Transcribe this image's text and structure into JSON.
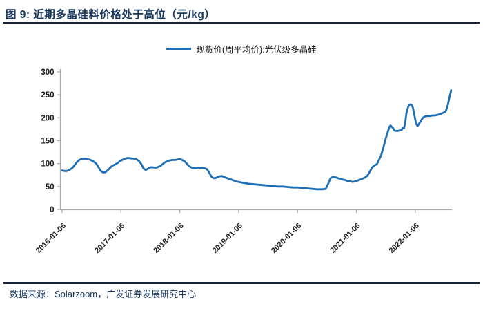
{
  "figure": {
    "title": "图 9:  近期多晶硅料价格处于高位（元/kg）",
    "source_label": "数据来源：Solarzoom，广发证券发展研究中心"
  },
  "legend": {
    "series_label": "现货价(周平均价):光伏级多晶硅"
  },
  "colors": {
    "line": "#1E6FB5",
    "title_text": "#17365D",
    "rule": "#1a2438",
    "axis": "#A9A9A9",
    "tick_text": "#1a1a1a"
  },
  "chart_data": {
    "type": "line",
    "title": "近期多晶硅料价格处于高位（元/kg）",
    "ylabel": "",
    "xlabel": "",
    "unit": "元/kg",
    "ylim": [
      0,
      300
    ],
    "y_ticks": [
      0,
      50,
      100,
      150,
      200,
      250,
      300
    ],
    "x_tick_labels": [
      "2016-01-06",
      "2017-01-06",
      "2018-01-06",
      "2019-01-06",
      "2020-01-06",
      "2021-01-06",
      "2022-01-06"
    ],
    "x_tick_years": [
      2016,
      2017,
      2018,
      2019,
      2020,
      2021,
      2022
    ],
    "grid": false,
    "legend_position": "top-center",
    "series": [
      {
        "name": "现货价(周平均价):光伏级多晶硅",
        "points": [
          [
            2016.0,
            85
          ],
          [
            2016.04,
            84
          ],
          [
            2016.08,
            84
          ],
          [
            2016.12,
            86
          ],
          [
            2016.17,
            90
          ],
          [
            2016.21,
            96
          ],
          [
            2016.25,
            103
          ],
          [
            2016.29,
            108
          ],
          [
            2016.33,
            110
          ],
          [
            2016.38,
            111
          ],
          [
            2016.42,
            110
          ],
          [
            2016.46,
            109
          ],
          [
            2016.5,
            107
          ],
          [
            2016.54,
            104
          ],
          [
            2016.58,
            100
          ],
          [
            2016.62,
            92
          ],
          [
            2016.65,
            85
          ],
          [
            2016.69,
            81
          ],
          [
            2016.73,
            81
          ],
          [
            2016.77,
            85
          ],
          [
            2016.81,
            90
          ],
          [
            2016.85,
            95
          ],
          [
            2016.9,
            98
          ],
          [
            2016.94,
            101
          ],
          [
            2016.98,
            105
          ],
          [
            2017.02,
            108
          ],
          [
            2017.06,
            110
          ],
          [
            2017.1,
            112
          ],
          [
            2017.15,
            112
          ],
          [
            2017.19,
            111
          ],
          [
            2017.23,
            111
          ],
          [
            2017.27,
            109
          ],
          [
            2017.31,
            105
          ],
          [
            2017.35,
            98
          ],
          [
            2017.38,
            90
          ],
          [
            2017.42,
            86
          ],
          [
            2017.46,
            89
          ],
          [
            2017.5,
            92
          ],
          [
            2017.54,
            92
          ],
          [
            2017.58,
            91
          ],
          [
            2017.62,
            92
          ],
          [
            2017.67,
            95
          ],
          [
            2017.71,
            99
          ],
          [
            2017.75,
            103
          ],
          [
            2017.79,
            105
          ],
          [
            2017.83,
            107
          ],
          [
            2017.88,
            108
          ],
          [
            2017.92,
            108
          ],
          [
            2017.96,
            109
          ],
          [
            2018.0,
            110
          ],
          [
            2018.04,
            108
          ],
          [
            2018.08,
            105
          ],
          [
            2018.12,
            100
          ],
          [
            2018.15,
            95
          ],
          [
            2018.19,
            92
          ],
          [
            2018.23,
            90
          ],
          [
            2018.27,
            90
          ],
          [
            2018.31,
            91
          ],
          [
            2018.35,
            91
          ],
          [
            2018.38,
            91
          ],
          [
            2018.42,
            90
          ],
          [
            2018.46,
            88
          ],
          [
            2018.5,
            80
          ],
          [
            2018.54,
            71
          ],
          [
            2018.58,
            68
          ],
          [
            2018.62,
            69
          ],
          [
            2018.67,
            72
          ],
          [
            2018.71,
            73
          ],
          [
            2018.75,
            71
          ],
          [
            2018.79,
            69
          ],
          [
            2018.83,
            67
          ],
          [
            2018.88,
            65
          ],
          [
            2018.92,
            63
          ],
          [
            2018.96,
            61
          ],
          [
            2019.0,
            60
          ],
          [
            2019.08,
            58
          ],
          [
            2019.17,
            56
          ],
          [
            2019.25,
            55
          ],
          [
            2019.33,
            54
          ],
          [
            2019.42,
            53
          ],
          [
            2019.5,
            52
          ],
          [
            2019.58,
            51
          ],
          [
            2019.67,
            50
          ],
          [
            2019.75,
            50
          ],
          [
            2019.83,
            49
          ],
          [
            2019.92,
            48
          ],
          [
            2020.0,
            48
          ],
          [
            2020.08,
            47
          ],
          [
            2020.17,
            46
          ],
          [
            2020.25,
            45
          ],
          [
            2020.33,
            44
          ],
          [
            2020.42,
            44
          ],
          [
            2020.48,
            45
          ],
          [
            2020.52,
            56
          ],
          [
            2020.56,
            68
          ],
          [
            2020.6,
            71
          ],
          [
            2020.65,
            70
          ],
          [
            2020.69,
            68
          ],
          [
            2020.73,
            67
          ],
          [
            2020.77,
            65
          ],
          [
            2020.81,
            64
          ],
          [
            2020.85,
            62
          ],
          [
            2020.9,
            61
          ],
          [
            2020.94,
            60
          ],
          [
            2021.0,
            62
          ],
          [
            2021.06,
            65
          ],
          [
            2021.1,
            67
          ],
          [
            2021.15,
            70
          ],
          [
            2021.19,
            74
          ],
          [
            2021.23,
            83
          ],
          [
            2021.27,
            92
          ],
          [
            2021.31,
            96
          ],
          [
            2021.35,
            99
          ],
          [
            2021.38,
            107
          ],
          [
            2021.42,
            118
          ],
          [
            2021.46,
            135
          ],
          [
            2021.5,
            155
          ],
          [
            2021.54,
            172
          ],
          [
            2021.56,
            180
          ],
          [
            2021.58,
            183
          ],
          [
            2021.62,
            178
          ],
          [
            2021.65,
            172
          ],
          [
            2021.69,
            171
          ],
          [
            2021.73,
            172
          ],
          [
            2021.77,
            174
          ],
          [
            2021.79,
            178
          ],
          [
            2021.81,
            177
          ],
          [
            2021.83,
            190
          ],
          [
            2021.85,
            210
          ],
          [
            2021.88,
            224
          ],
          [
            2021.9,
            228
          ],
          [
            2021.92,
            229
          ],
          [
            2021.94,
            228
          ],
          [
            2021.96,
            222
          ],
          [
            2021.98,
            210
          ],
          [
            2022.0,
            196
          ],
          [
            2022.02,
            186
          ],
          [
            2022.04,
            182
          ],
          [
            2022.06,
            186
          ],
          [
            2022.1,
            194
          ],
          [
            2022.13,
            200
          ],
          [
            2022.17,
            203
          ],
          [
            2022.21,
            204
          ],
          [
            2022.25,
            204
          ],
          [
            2022.29,
            205
          ],
          [
            2022.33,
            205
          ],
          [
            2022.37,
            206
          ],
          [
            2022.4,
            207
          ],
          [
            2022.44,
            209
          ],
          [
            2022.48,
            211
          ],
          [
            2022.5,
            212
          ],
          [
            2022.52,
            215
          ],
          [
            2022.54,
            222
          ],
          [
            2022.56,
            232
          ],
          [
            2022.58,
            244
          ],
          [
            2022.6,
            254
          ],
          [
            2022.61,
            260
          ]
        ]
      }
    ]
  }
}
